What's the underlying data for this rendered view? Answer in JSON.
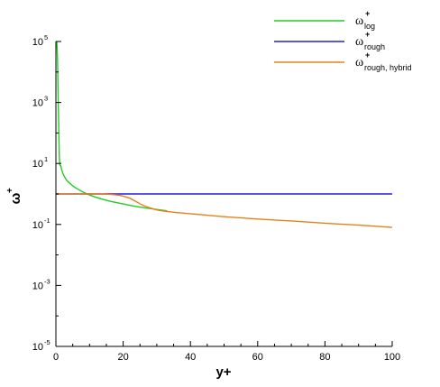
{
  "chart_data": {
    "type": "line",
    "xlabel": "y+",
    "ylabel": {
      "base": "ω",
      "sup": "+"
    },
    "xlim": [
      0,
      100
    ],
    "ylim": [
      1e-05,
      100000.0
    ],
    "yscale": "log",
    "grid": false,
    "legend_position": "top-right",
    "x_ticks": [
      "0",
      "20",
      "40",
      "60",
      "80",
      "100"
    ],
    "y_ticks": [
      {
        "value": 1e-05,
        "base": "10",
        "exp": "-5"
      },
      {
        "value": 0.001,
        "base": "10",
        "exp": "-3"
      },
      {
        "value": 0.1,
        "base": "10",
        "exp": "-1"
      },
      {
        "value": 10,
        "base": "10",
        "exp": "1"
      },
      {
        "value": 1000,
        "base": "10",
        "exp": "3"
      },
      {
        "value": 100000,
        "base": "10",
        "exp": "5"
      }
    ],
    "series": [
      {
        "name": {
          "base": "ω",
          "sup": "+",
          "sub": "log"
        },
        "color": "#22cc22",
        "x": [
          0.25,
          0.5,
          1,
          1.5,
          2,
          3,
          4,
          5,
          6,
          8,
          10,
          12,
          15,
          18,
          20,
          25,
          30,
          33
        ],
        "y": [
          100000,
          20000,
          20,
          8,
          5,
          3,
          2.3,
          1.85,
          1.55,
          1.17,
          0.93,
          0.77,
          0.62,
          0.52,
          0.47,
          0.37,
          0.31,
          0.28
        ]
      },
      {
        "name": {
          "base": "ω",
          "sup": "+",
          "sub": "rough"
        },
        "color": "#2222dd",
        "x": [
          0,
          100
        ],
        "y": [
          1,
          1
        ]
      },
      {
        "name": {
          "base": "ω",
          "sup": "+",
          "sub": "rough, hybrid"
        },
        "color": "#e8801a",
        "x": [
          0,
          10,
          15,
          18,
          20,
          22,
          24,
          26,
          28,
          30,
          32,
          34,
          36,
          40,
          50,
          60,
          70,
          80,
          90,
          100
        ],
        "y": [
          1,
          1,
          0.98,
          0.93,
          0.85,
          0.72,
          0.55,
          0.42,
          0.35,
          0.3,
          0.275,
          0.26,
          0.245,
          0.225,
          0.18,
          0.15,
          0.13,
          0.11,
          0.095,
          0.08
        ]
      }
    ]
  }
}
